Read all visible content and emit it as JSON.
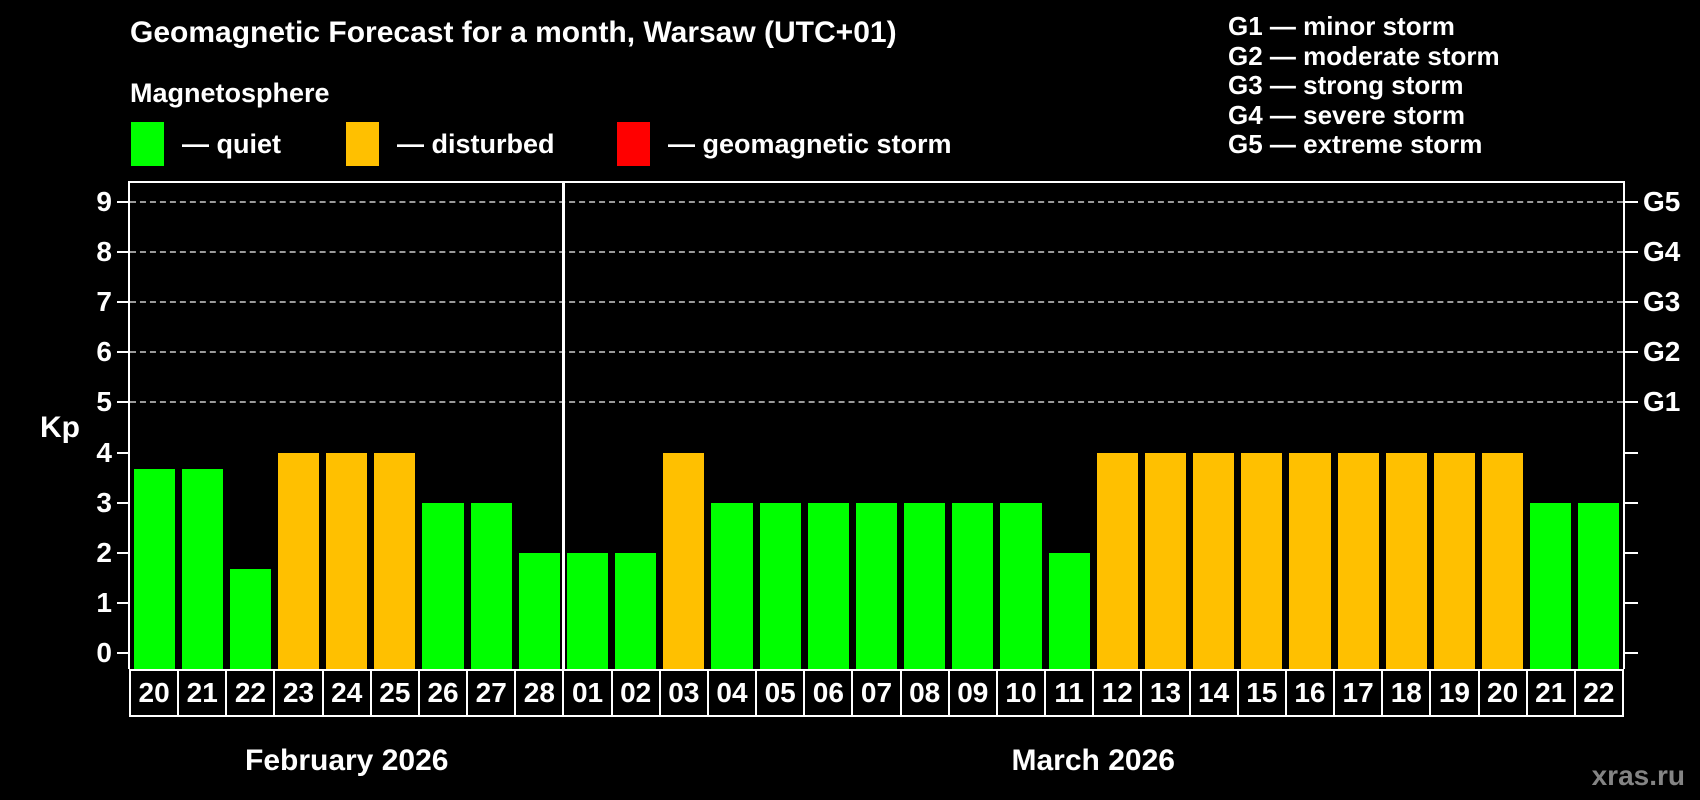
{
  "header": {
    "title": "Geomagnetic Forecast for a month, Warsaw (UTC+01)"
  },
  "magnetosphere_legend": {
    "title": "Magnetosphere",
    "items": [
      {
        "key": "quiet",
        "label": "— quiet",
        "color": "#00ff00"
      },
      {
        "key": "disturbed",
        "label": "— disturbed",
        "color": "#ffc000"
      },
      {
        "key": "storm",
        "label": "— geomagnetic storm",
        "color": "#ff0000"
      }
    ]
  },
  "g_scale_legend": {
    "items": [
      "G1 — minor storm",
      "G2 — moderate storm",
      "G3 — strong storm",
      "G4 — severe storm",
      "G5 — extreme storm"
    ]
  },
  "axes": {
    "y_label": "Kp",
    "y_ticks": [
      0,
      1,
      2,
      3,
      4,
      5,
      6,
      7,
      8,
      9
    ],
    "grid_values": [
      5,
      6,
      7,
      8,
      9
    ],
    "right_axis_labels": [
      {
        "value": 5,
        "label": "G1"
      },
      {
        "value": 6,
        "label": "G2"
      },
      {
        "value": 7,
        "label": "G3"
      },
      {
        "value": 8,
        "label": "G4"
      },
      {
        "value": 9,
        "label": "G5"
      }
    ],
    "grid_color": "#9a9a9a"
  },
  "chart_data": {
    "type": "bar",
    "title": "Geomagnetic Forecast for a month, Warsaw (UTC+01)",
    "ylabel": "Kp",
    "ylim": [
      0,
      9
    ],
    "grid": "horizontal dashed lines at Kp 5,6,7,8,9",
    "legend_position": "top-left and top-right",
    "categories": [
      "20",
      "21",
      "22",
      "23",
      "24",
      "25",
      "26",
      "27",
      "28",
      "01",
      "02",
      "03",
      "04",
      "05",
      "06",
      "07",
      "08",
      "09",
      "10",
      "11",
      "12",
      "13",
      "14",
      "15",
      "16",
      "17",
      "18",
      "19",
      "20",
      "21",
      "22"
    ],
    "values": [
      3.67,
      3.67,
      1.67,
      4,
      4,
      4,
      3,
      3,
      2,
      2,
      2,
      4,
      3,
      3,
      3,
      3,
      3,
      3,
      3,
      2,
      4,
      4,
      4,
      4,
      4,
      4,
      4,
      4,
      4,
      3,
      3
    ],
    "statuses": [
      "quiet",
      "quiet",
      "quiet",
      "disturbed",
      "disturbed",
      "disturbed",
      "quiet",
      "quiet",
      "quiet",
      "quiet",
      "quiet",
      "disturbed",
      "quiet",
      "quiet",
      "quiet",
      "quiet",
      "quiet",
      "quiet",
      "quiet",
      "quiet",
      "disturbed",
      "disturbed",
      "disturbed",
      "disturbed",
      "disturbed",
      "disturbed",
      "disturbed",
      "disturbed",
      "disturbed",
      "quiet",
      "quiet"
    ],
    "months": [
      {
        "label": "February 2026",
        "days": 9
      },
      {
        "label": "March 2026",
        "days": 22
      }
    ]
  },
  "footer": {
    "watermark": "xras.ru"
  }
}
